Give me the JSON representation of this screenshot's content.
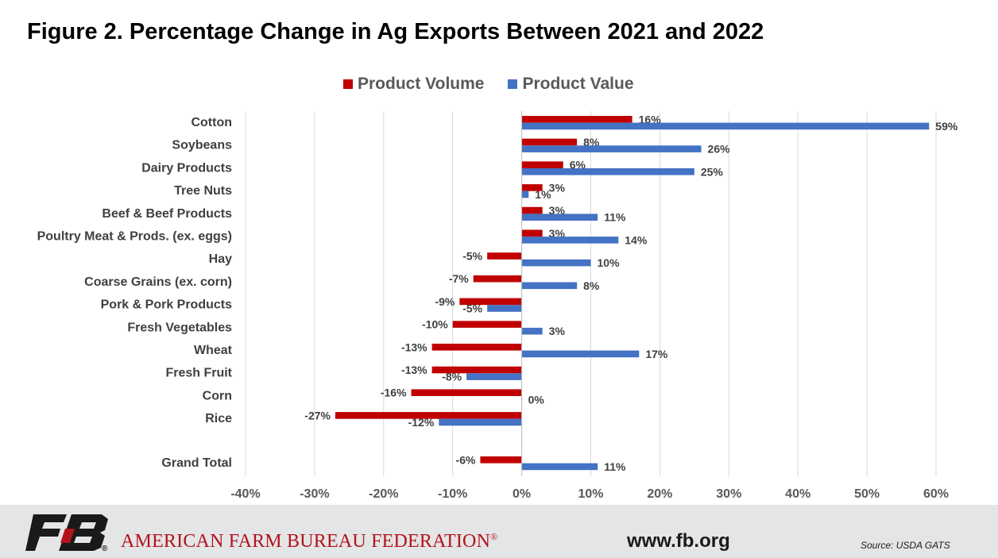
{
  "title": "Figure 2. Percentage Change in Ag Exports Between 2021 and 2022",
  "colors": {
    "volume": "#c00000",
    "value": "#4472c4",
    "grid": "#d9d9d9",
    "axis_text": "#595959",
    "label_text": "#404040",
    "brand_red": "#b5121b"
  },
  "legend": {
    "volume": "Product Volume",
    "value": "Product Value"
  },
  "chart_data": {
    "type": "bar",
    "orientation": "horizontal",
    "categories": [
      "Cotton",
      "Soybeans",
      "Dairy Products",
      "Tree Nuts",
      "Beef & Beef Products",
      "Poultry Meat & Prods. (ex. eggs)",
      "Hay",
      "Coarse Grains (ex. corn)",
      "Pork & Pork Products",
      "Fresh Vegetables",
      "Wheat",
      "Fresh Fruit",
      "Corn",
      "Rice",
      "Grand Total"
    ],
    "series": [
      {
        "name": "Product Volume",
        "values": [
          16,
          8,
          6,
          3,
          3,
          3,
          -5,
          -7,
          -9,
          -10,
          -13,
          -13,
          -16,
          -27,
          -6
        ],
        "labels": [
          "16%",
          "8%",
          "6%",
          "3%",
          "3%",
          "3%",
          "-5%",
          "-7%",
          "-9%",
          "-10%",
          "-13%",
          "-13%",
          "-16%",
          "-27%",
          "-6%"
        ]
      },
      {
        "name": "Product Value",
        "values": [
          59,
          26,
          25,
          1,
          11,
          14,
          10,
          8,
          -5,
          3,
          17,
          -8,
          0,
          -12,
          11
        ],
        "labels": [
          "59%",
          "26%",
          "25%",
          "1%",
          "11%",
          "14%",
          "10%",
          "8%",
          "-5%",
          "3%",
          "17%",
          "-8%",
          "0%",
          "-12%",
          "11%"
        ]
      }
    ],
    "xlim": [
      -40,
      60
    ],
    "xticks": [
      -40,
      -30,
      -20,
      -10,
      0,
      10,
      20,
      30,
      40,
      50,
      60
    ],
    "xtick_labels": [
      "-40%",
      "-30%",
      "-20%",
      "-10%",
      "0%",
      "10%",
      "20%",
      "30%",
      "40%",
      "50%",
      "60%"
    ],
    "grid": true,
    "legend_position": "top"
  },
  "footer": {
    "organization": "AMERICAN FARM BUREAU FEDERATION",
    "registered_mark": "®",
    "logo_text": "FB",
    "website": "www.fb.org",
    "source": "Source: USDA GATS"
  }
}
